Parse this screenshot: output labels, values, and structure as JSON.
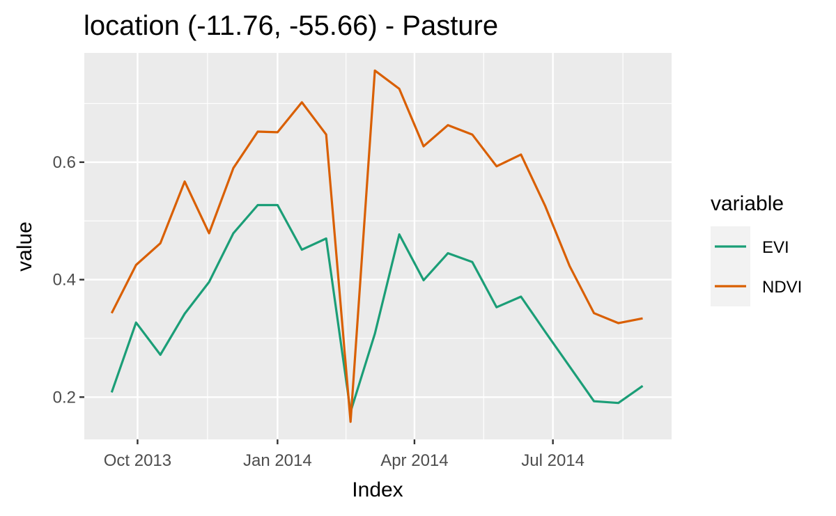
{
  "chart_data": {
    "type": "line",
    "title": "location (-11.76, -55.66) - Pasture",
    "xlabel": "Index",
    "ylabel": "value",
    "x": [
      "2013-09-14",
      "2013-09-30",
      "2013-10-16",
      "2013-11-01",
      "2013-11-17",
      "2013-12-03",
      "2013-12-19",
      "2014-01-01",
      "2014-01-17",
      "2014-02-02",
      "2014-02-18",
      "2014-03-06",
      "2014-03-22",
      "2014-04-07",
      "2014-04-23",
      "2014-05-09",
      "2014-05-25",
      "2014-06-10",
      "2014-06-26",
      "2014-07-12",
      "2014-07-28",
      "2014-08-13",
      "2014-08-29"
    ],
    "series": [
      {
        "name": "EVI",
        "color": "#1b9e77",
        "values": [
          0.208,
          0.327,
          0.272,
          0.342,
          0.396,
          0.479,
          0.527,
          0.527,
          0.451,
          0.47,
          0.175,
          0.308,
          0.477,
          0.399,
          0.445,
          0.43,
          0.353,
          0.371,
          0.311,
          0.252,
          0.193,
          0.19,
          0.219
        ]
      },
      {
        "name": "NDVI",
        "color": "#d95f02",
        "values": [
          0.343,
          0.425,
          0.462,
          0.567,
          0.479,
          0.59,
          0.652,
          0.651,
          0.702,
          0.647,
          0.158,
          0.756,
          0.725,
          0.627,
          0.663,
          0.647,
          0.593,
          0.613,
          0.525,
          0.423,
          0.343,
          0.326,
          0.334
        ]
      }
    ],
    "xlim": [
      "2013-08-27",
      "2014-09-17"
    ],
    "ylim": [
      0.128,
      0.786
    ],
    "x_ticks": [
      {
        "date": "2013-10-01",
        "label": "Oct 2013"
      },
      {
        "date": "2014-01-01",
        "label": "Jan 2014"
      },
      {
        "date": "2014-04-01",
        "label": "Apr 2014"
      },
      {
        "date": "2014-07-01",
        "label": "Jul 2014"
      }
    ],
    "y_ticks": [
      0.2,
      0.4,
      0.6
    ],
    "grid": true,
    "legend": {
      "title": "variable",
      "position": "right"
    }
  }
}
